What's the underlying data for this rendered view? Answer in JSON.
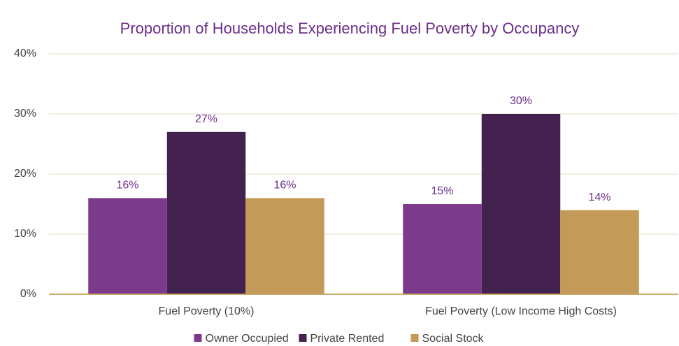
{
  "chart_data": {
    "type": "bar",
    "title": "Proportion of Households Experiencing Fuel Poverty by Occupancy",
    "categories": [
      "Fuel Poverty (10%)",
      "Fuel Poverty (Low Income High Costs)"
    ],
    "series": [
      {
        "name": "Owner Occupied",
        "color": "#7b3a8c",
        "values": [
          16,
          15
        ],
        "value_labels": [
          "16%",
          "15%"
        ]
      },
      {
        "name": "Private Rented",
        "color": "#44224f",
        "values": [
          27,
          30
        ],
        "value_labels": [
          "27%",
          "30%"
        ]
      },
      {
        "name": "Social Stock",
        "color": "#c49a58",
        "values": [
          16,
          14
        ],
        "value_labels": [
          "16%",
          "14%"
        ]
      }
    ],
    "ylim": [
      0,
      40
    ],
    "yticks": [
      {
        "value": 0,
        "label": "0%"
      },
      {
        "value": 10,
        "label": "10%"
      },
      {
        "value": 20,
        "label": "20%"
      },
      {
        "value": 30,
        "label": "30%"
      },
      {
        "value": 40,
        "label": "40%"
      }
    ],
    "grid": true,
    "legend": "bottom"
  }
}
